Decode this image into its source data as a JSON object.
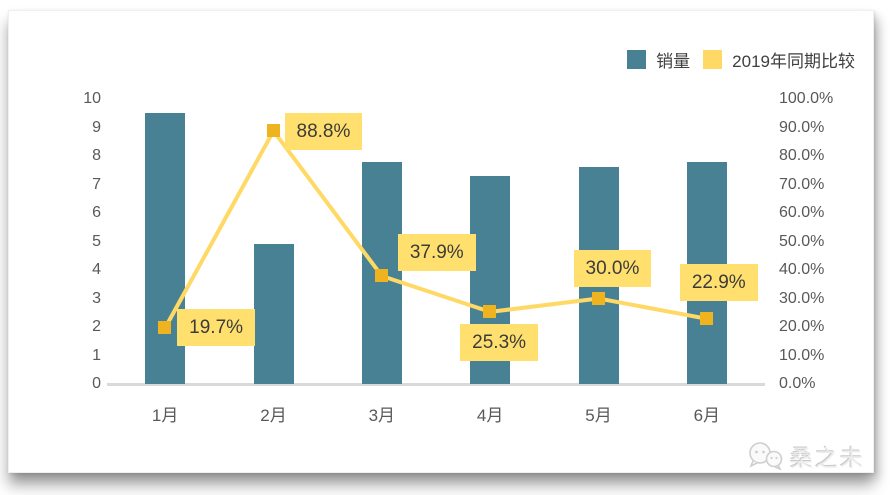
{
  "chart_data": {
    "type": "combo",
    "categories": [
      "1月",
      "2月",
      "3月",
      "4月",
      "5月",
      "6月"
    ],
    "series": [
      {
        "name": "销量",
        "type": "bar",
        "axis": "left",
        "color": "#488094",
        "values": [
          9.5,
          4.9,
          7.8,
          7.3,
          7.6,
          7.8
        ]
      },
      {
        "name": "2019年同期比较",
        "type": "line",
        "axis": "right",
        "color": "#FFD966",
        "marker_color": "#EFB320",
        "label_bg": "#FFE06E",
        "values": [
          19.7,
          88.8,
          37.9,
          25.3,
          30.0,
          22.9
        ],
        "labels": [
          "19.7%",
          "88.8%",
          "37.9%",
          "25.3%",
          "30.0%",
          "22.9%"
        ]
      }
    ],
    "left_axis": {
      "min": 0,
      "max": 10,
      "tick_labels": [
        "10",
        "9",
        "8",
        "7",
        "6",
        "5",
        "4",
        "3",
        "2",
        "1",
        "0"
      ]
    },
    "right_axis": {
      "min": 0,
      "max": 100,
      "tick_labels": [
        "100.0%",
        "90.0%",
        "80.0%",
        "70.0%",
        "60.0%",
        "50.0%",
        "40.0%",
        "30.0%",
        "20.0%",
        "10.0%",
        "0.0%"
      ]
    },
    "title": "",
    "legend_position": "top-right",
    "grid": false
  },
  "watermark": {
    "text": "桑之未"
  }
}
